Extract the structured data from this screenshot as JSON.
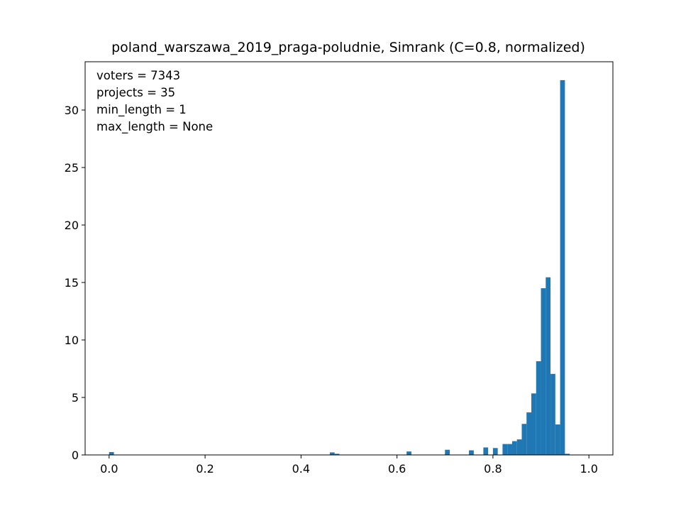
{
  "chart_data": {
    "type": "bar",
    "title": "poland_warszawa_2019_praga-poludnie, Simrank (C=0.8, normalized)",
    "xlabel": "",
    "ylabel": "",
    "xlim": [
      -0.05,
      1.05
    ],
    "ylim": [
      0,
      34.2
    ],
    "xticks": [
      0.0,
      0.2,
      0.4,
      0.6,
      0.8,
      1.0
    ],
    "xtick_labels": [
      "0.0",
      "0.2",
      "0.4",
      "0.6",
      "0.8",
      "1.0"
    ],
    "yticks": [
      0,
      5,
      10,
      15,
      20,
      25,
      30
    ],
    "ytick_labels": [
      "0",
      "5",
      "10",
      "15",
      "20",
      "25",
      "30"
    ],
    "grid": false,
    "color": "#1f77b4",
    "annotations": [
      "voters = 7343",
      "projects = 35",
      "min_length = 1",
      "max_length = None"
    ],
    "bin_width": 0.01,
    "bins": [
      {
        "x": 0.0,
        "value": 0.25
      },
      {
        "x": 0.46,
        "value": 0.22
      },
      {
        "x": 0.47,
        "value": 0.1
      },
      {
        "x": 0.62,
        "value": 0.3
      },
      {
        "x": 0.7,
        "value": 0.45
      },
      {
        "x": 0.75,
        "value": 0.4
      },
      {
        "x": 0.78,
        "value": 0.65
      },
      {
        "x": 0.8,
        "value": 0.6
      },
      {
        "x": 0.82,
        "value": 0.95
      },
      {
        "x": 0.83,
        "value": 0.95
      },
      {
        "x": 0.84,
        "value": 1.2
      },
      {
        "x": 0.85,
        "value": 1.35
      },
      {
        "x": 0.86,
        "value": 2.7
      },
      {
        "x": 0.87,
        "value": 3.7
      },
      {
        "x": 0.88,
        "value": 5.35
      },
      {
        "x": 0.89,
        "value": 8.15
      },
      {
        "x": 0.9,
        "value": 14.5
      },
      {
        "x": 0.91,
        "value": 15.45
      },
      {
        "x": 0.92,
        "value": 7.05
      },
      {
        "x": 0.93,
        "value": 2.65
      },
      {
        "x": 0.94,
        "value": 32.6
      },
      {
        "x": 0.95,
        "value": 0.1
      }
    ]
  }
}
